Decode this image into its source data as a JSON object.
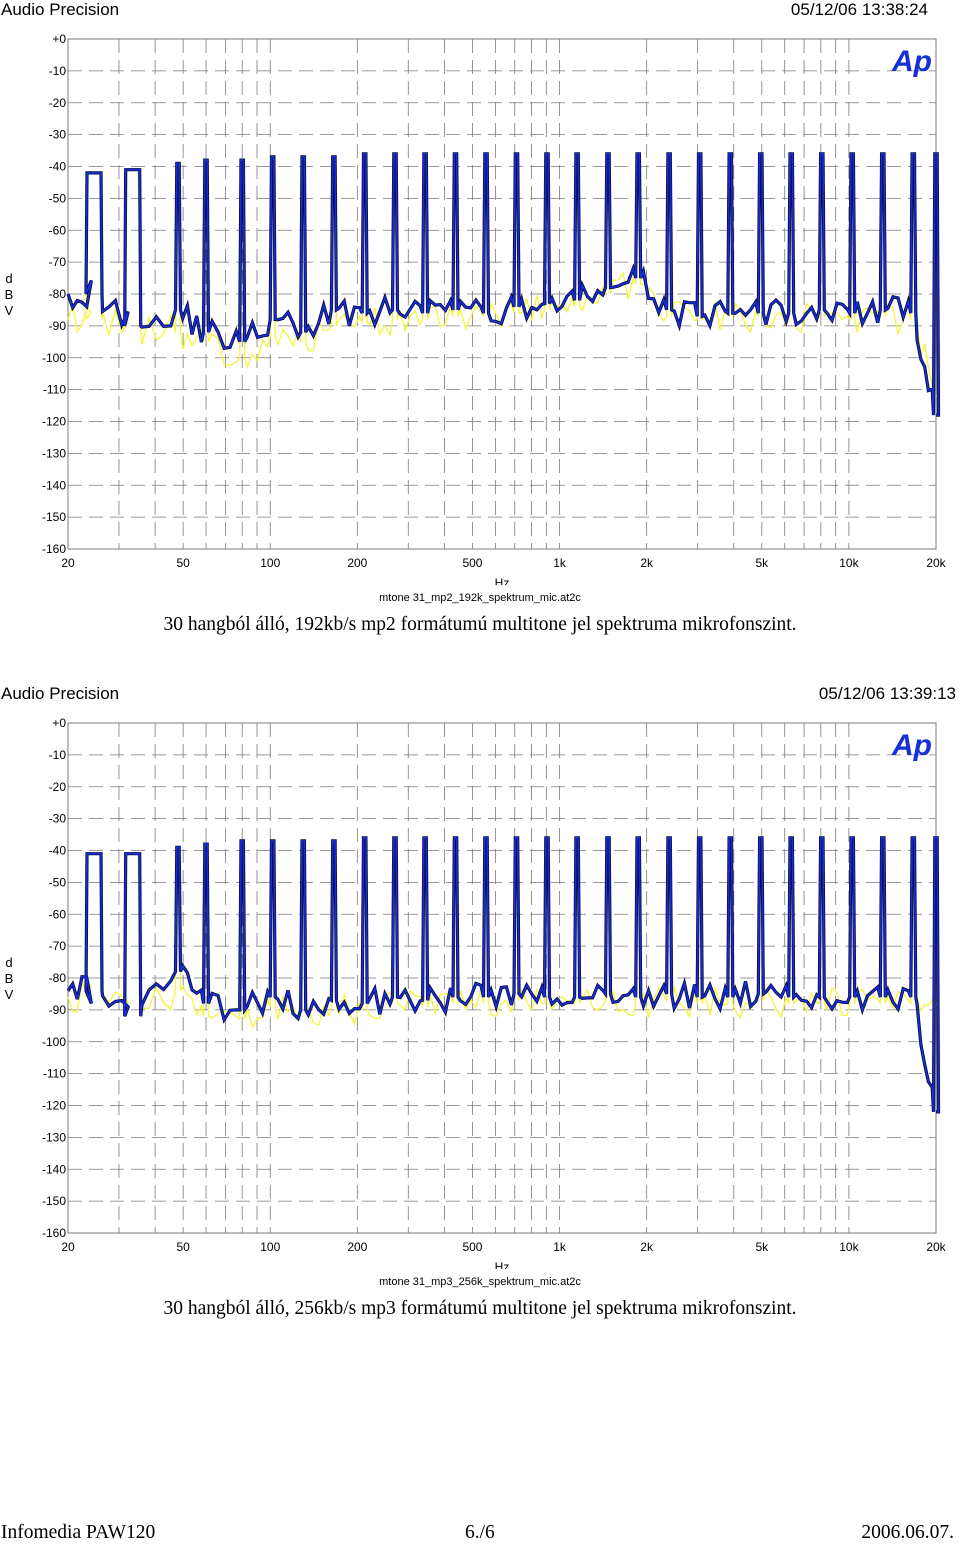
{
  "colors": {
    "trace_blue": "#1530d8",
    "trace_yellow": "#f5f53c",
    "trace_dark": "#0a0a40",
    "grid": "#7a7a7a",
    "logo": "#1530d8"
  },
  "panels": [
    {
      "brand": "Audio Precision",
      "timestamp": "05/12/06 13:38:24",
      "logo": "Ap",
      "ylabel_chars": [
        "d",
        "B",
        "V"
      ],
      "filename": "mtone 31_mp2_192k_spektrum_mic.at2c",
      "caption": "30 hangból álló, 192kb/s mp2 formátumú multitone jel spektruma mikrofonszint."
    },
    {
      "brand": "Audio Precision",
      "timestamp": "05/12/06 13:39:13",
      "logo": "Ap",
      "ylabel_chars": [
        "d",
        "B",
        "V"
      ],
      "filename": "mtone 31_mp3_256k_spektrum_mic.at2c",
      "caption": "30 hangból álló, 256kb/s mp3 formátumú multitone jel spektruma mikrofonszint."
    }
  ],
  "chart_data": [
    {
      "type": "line",
      "xlabel": "Hz",
      "ylabel": "dBV",
      "x_scale": "log",
      "xlim": [
        20,
        20000
      ],
      "ylim": [
        -160,
        0
      ],
      "grid": true,
      "yticks": [
        {
          "v": 0,
          "label": "+0"
        },
        {
          "v": -10,
          "label": "-10"
        },
        {
          "v": -20,
          "label": "-20"
        },
        {
          "v": -30,
          "label": "-30"
        },
        {
          "v": -40,
          "label": "-40"
        },
        {
          "v": -50,
          "label": "-50"
        },
        {
          "v": -60,
          "label": "-60"
        },
        {
          "v": -70,
          "label": "-70"
        },
        {
          "v": -80,
          "label": "-80"
        },
        {
          "v": -90,
          "label": "-90"
        },
        {
          "v": -100,
          "label": "-100"
        },
        {
          "v": -110,
          "label": "-110"
        },
        {
          "v": -120,
          "label": "-120"
        },
        {
          "v": -130,
          "label": "-130"
        },
        {
          "v": -140,
          "label": "-140"
        },
        {
          "v": -150,
          "label": "-150"
        },
        {
          "v": -160,
          "label": "-160"
        }
      ],
      "xticks": [
        {
          "v": 20,
          "label": "20"
        },
        {
          "v": 50,
          "label": "50"
        },
        {
          "v": 100,
          "label": "100"
        },
        {
          "v": 200,
          "label": "200"
        },
        {
          "v": 500,
          "label": "500"
        },
        {
          "v": 1000,
          "label": "1k"
        },
        {
          "v": 2000,
          "label": "2k"
        },
        {
          "v": 5000,
          "label": "5k"
        },
        {
          "v": 10000,
          "label": "10k"
        },
        {
          "v": 20000,
          "label": "20k"
        }
      ],
      "tone_frequencies": [
        25,
        34,
        48,
        60,
        80,
        102,
        130,
        166,
        212,
        270,
        343,
        437,
        557,
        710,
        905,
        1150,
        1470,
        1870,
        2390,
        3050,
        3890,
        4960,
        6320,
        8060,
        10270,
        13100,
        16700,
        20000
      ],
      "tone_levels": [
        -42,
        -41,
        -39,
        -38,
        -38,
        -37,
        -37,
        -37,
        -36,
        -36,
        -36,
        -36,
        -36,
        -36,
        -36,
        -36,
        -36,
        -36,
        -36,
        -36,
        -36,
        -36,
        -36,
        -36,
        -36,
        -36,
        -36,
        -36
      ],
      "noise_floor_blue": [
        -80,
        -90,
        -85,
        -92,
        -95,
        -88,
        -92,
        -85,
        -86,
        -85,
        -86,
        -85,
        -86,
        -84,
        -83,
        -82,
        -78,
        -75,
        -85,
        -87,
        -86,
        -86,
        -86,
        -85,
        -86,
        -85,
        -86,
        -118
      ],
      "noise_floor_yellow": [
        -88,
        -91,
        -92,
        -95,
        -100,
        -93,
        -95,
        -90,
        -89,
        -88,
        -88,
        -87,
        -87,
        -86,
        -85,
        -84,
        -80,
        -77,
        -87,
        -88,
        -87,
        -87,
        -88,
        -87,
        -88,
        -87,
        -88,
        -112
      ]
    },
    {
      "type": "line",
      "xlabel": "Hz",
      "ylabel": "dBV",
      "x_scale": "log",
      "xlim": [
        20,
        20000
      ],
      "ylim": [
        -160,
        0
      ],
      "grid": true,
      "yticks": [
        {
          "v": 0,
          "label": "+0"
        },
        {
          "v": -10,
          "label": "-10"
        },
        {
          "v": -20,
          "label": "-20"
        },
        {
          "v": -30,
          "label": "-30"
        },
        {
          "v": -40,
          "label": "-40"
        },
        {
          "v": -50,
          "label": "-50"
        },
        {
          "v": -60,
          "label": "-60"
        },
        {
          "v": -70,
          "label": "-70"
        },
        {
          "v": -80,
          "label": "-80"
        },
        {
          "v": -90,
          "label": "-90"
        },
        {
          "v": -100,
          "label": "-100"
        },
        {
          "v": -110,
          "label": "-110"
        },
        {
          "v": -120,
          "label": "-120"
        },
        {
          "v": -130,
          "label": "-130"
        },
        {
          "v": -140,
          "label": "-140"
        },
        {
          "v": -150,
          "label": "-150"
        },
        {
          "v": -160,
          "label": "-160"
        }
      ],
      "xticks": [
        {
          "v": 20,
          "label": "20"
        },
        {
          "v": 50,
          "label": "50"
        },
        {
          "v": 100,
          "label": "100"
        },
        {
          "v": 200,
          "label": "200"
        },
        {
          "v": 500,
          "label": "500"
        },
        {
          "v": 1000,
          "label": "1k"
        },
        {
          "v": 2000,
          "label": "2k"
        },
        {
          "v": 5000,
          "label": "5k"
        },
        {
          "v": 10000,
          "label": "10k"
        },
        {
          "v": 20000,
          "label": "20k"
        }
      ],
      "tone_frequencies": [
        25,
        34,
        48,
        60,
        80,
        102,
        130,
        166,
        212,
        270,
        343,
        437,
        557,
        710,
        905,
        1150,
        1470,
        1870,
        2390,
        3050,
        3890,
        4960,
        6320,
        8060,
        10270,
        13100,
        16700,
        20000
      ],
      "tone_levels": [
        -41,
        -41,
        -39,
        -38,
        -37,
        -37,
        -37,
        -37,
        -36,
        -36,
        -36,
        -36,
        -36,
        -36,
        -36,
        -36,
        -36,
        -36,
        -36,
        -36,
        -36,
        -36,
        -36,
        -36,
        -36,
        -36,
        -36,
        -36
      ],
      "noise_floor_blue": [
        -84,
        -92,
        -78,
        -88,
        -90,
        -86,
        -90,
        -87,
        -88,
        -86,
        -87,
        -86,
        -86,
        -85,
        -86,
        -86,
        -85,
        -86,
        -85,
        -86,
        -86,
        -85,
        -86,
        -86,
        -86,
        -86,
        -86,
        -122
      ],
      "noise_floor_yellow": [
        -86,
        -90,
        -84,
        -92,
        -93,
        -89,
        -91,
        -89,
        -90,
        -88,
        -89,
        -88,
        -88,
        -87,
        -88,
        -88,
        -87,
        -88,
        -87,
        -88,
        -88,
        -87,
        -88,
        -88,
        -88,
        -88,
        -88,
        -88
      ]
    }
  ],
  "footer": {
    "left": "Infomedia PAW120",
    "center": "6./6",
    "right": "2006.06.07."
  }
}
